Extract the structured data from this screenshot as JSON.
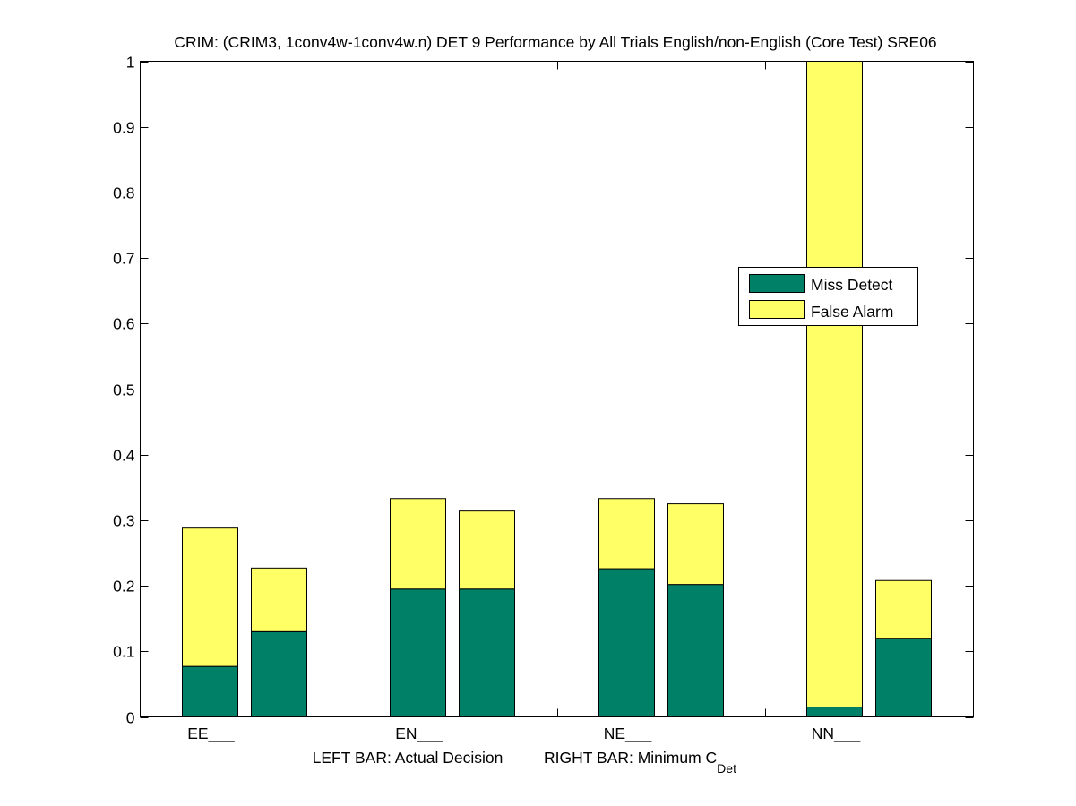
{
  "chart_data": {
    "type": "bar",
    "stacked": true,
    "title": "CRIM: (CRIM3, 1conv4w-1conv4w.n) DET 9 Performance by All Trials English/non-English (Core Test) SRE06",
    "categories": [
      "EE___",
      "EN___",
      "NE___",
      "NN___"
    ],
    "xlabel_left": "LEFT BAR: Actual Decision",
    "xlabel_right": "RIGHT BAR: Minimum C",
    "xlabel_right_sub": "Det",
    "ylim": [
      0,
      1
    ],
    "yticks": [
      0,
      0.1,
      0.2,
      0.3,
      0.4,
      0.5,
      0.6,
      0.7,
      0.8,
      0.9,
      1
    ],
    "ytick_labels": [
      "0",
      "0.1",
      "0.2",
      "0.3",
      "0.4",
      "0.5",
      "0.6",
      "0.7",
      "0.8",
      "0.9",
      "1"
    ],
    "legend_position": "middle-right",
    "series": [
      {
        "name": "Miss Detect",
        "color": "#008066"
      },
      {
        "name": "False Alarm",
        "color": "#ffff66"
      }
    ],
    "bars": [
      {
        "category": "EE___",
        "which": "Actual Decision",
        "miss": 0.077,
        "false_alarm": 0.211,
        "total": 0.288
      },
      {
        "category": "EE___",
        "which": "Minimum CDet",
        "miss": 0.13,
        "false_alarm": 0.097,
        "total": 0.227
      },
      {
        "category": "EN___",
        "which": "Actual Decision",
        "miss": 0.195,
        "false_alarm": 0.138,
        "total": 0.333
      },
      {
        "category": "EN___",
        "which": "Minimum CDet",
        "miss": 0.195,
        "false_alarm": 0.119,
        "total": 0.314
      },
      {
        "category": "NE___",
        "which": "Actual Decision",
        "miss": 0.226,
        "false_alarm": 0.107,
        "total": 0.333
      },
      {
        "category": "NE___",
        "which": "Minimum CDet",
        "miss": 0.202,
        "false_alarm": 0.123,
        "total": 0.325
      },
      {
        "category": "NN___",
        "which": "Actual Decision",
        "miss": 0.015,
        "false_alarm": 0.985,
        "total": 1.0
      },
      {
        "category": "NN___",
        "which": "Minimum CDet",
        "miss": 0.12,
        "false_alarm": 0.088,
        "total": 0.208
      }
    ]
  }
}
